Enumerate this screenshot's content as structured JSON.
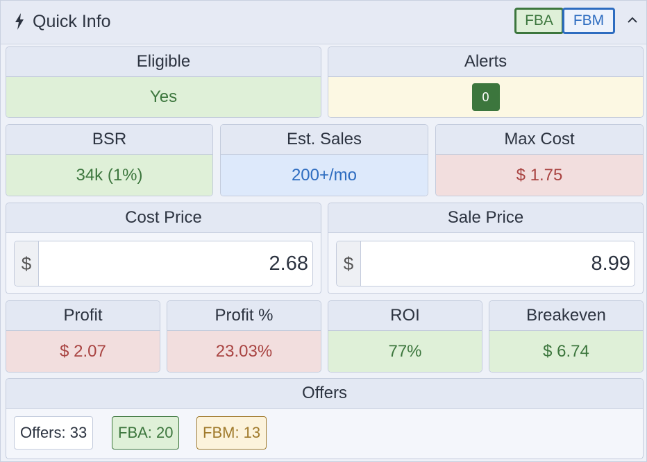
{
  "header": {
    "title": "Quick Info",
    "toggles": [
      "FBA",
      "FBM"
    ]
  },
  "cards": [
    {
      "label": "Eligible",
      "value": "Yes"
    },
    {
      "label": "Alerts",
      "value": "0"
    },
    {
      "label": "BSR",
      "value": "34k (1%)"
    },
    {
      "label": "Est. Sales",
      "value": "200+/mo"
    },
    {
      "label": "Max Cost",
      "value": "$ 1.75"
    },
    {
      "label": "Profit",
      "value": "$ 2.07"
    },
    {
      "label": "Profit %",
      "value": "23.03%"
    },
    {
      "label": "ROI",
      "value": "77%"
    },
    {
      "label": "Breakeven",
      "value": "$ 6.74"
    }
  ],
  "inputs": [
    {
      "label": "Cost Price",
      "prefix": "$",
      "value": "2.68"
    },
    {
      "label": "Sale Price",
      "prefix": "$",
      "value": "8.99"
    }
  ],
  "offers": {
    "label": "Offers",
    "badges": [
      "Offers: 33",
      "FBA: 20",
      "FBM: 13"
    ]
  }
}
